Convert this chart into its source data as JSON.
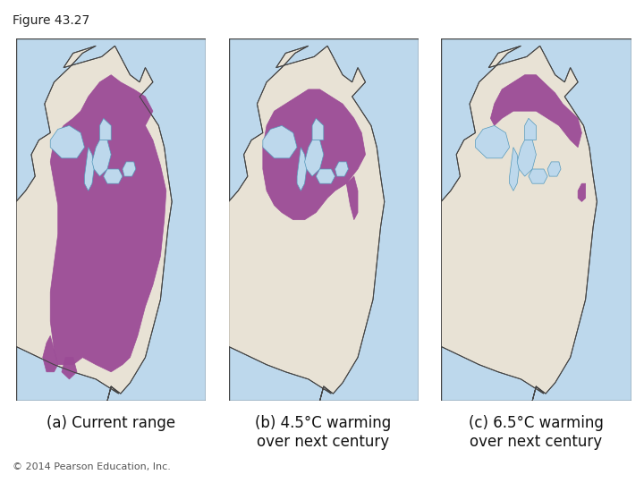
{
  "figure_title": "Figure 43.27",
  "background_color": "#ffffff",
  "map_bg_color": "#bdd8ec",
  "land_color": "#e8e2d5",
  "purple_color": "#9b4b96",
  "border_color": "#444444",
  "lake_color": "#bdd8ec",
  "labels": [
    "(a) Current range",
    "(b) 4.5°C warming\nover next century",
    "(c) 6.5°C warming\nover next century"
  ],
  "copyright_text": "© 2014 Pearson Education, Inc.",
  "label_fontsize": 12,
  "title_fontsize": 10,
  "copyright_fontsize": 8
}
